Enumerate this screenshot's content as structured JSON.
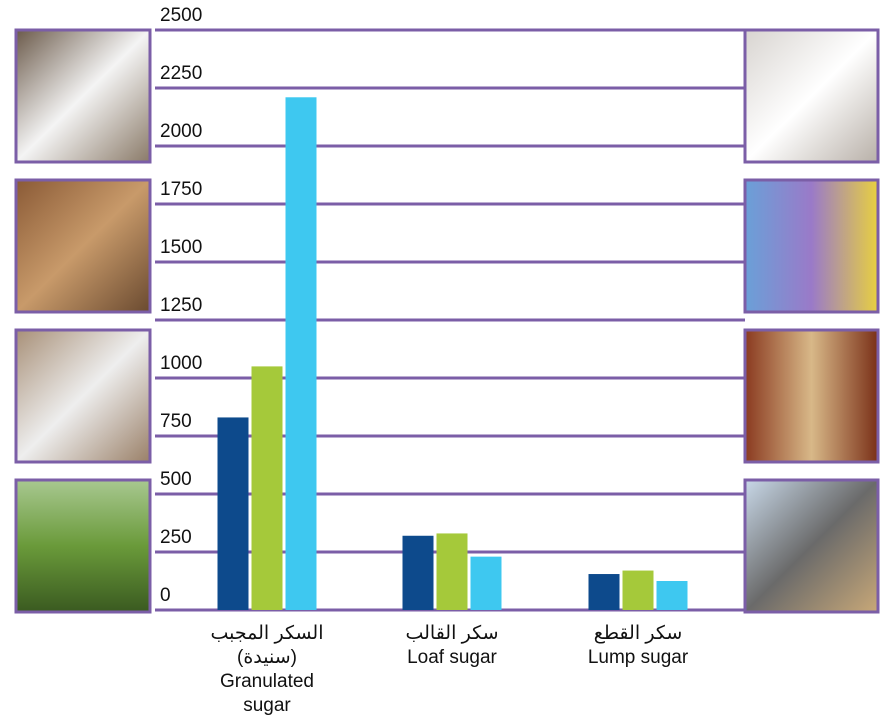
{
  "chart_data": {
    "type": "bar",
    "categories": [
      [
        "السكر المجبب",
        "(سنيدة)",
        "Granulated",
        "sugar"
      ],
      [
        "سكر القالب",
        "Loaf sugar"
      ],
      [
        "سكر القطع",
        "Lump sugar"
      ]
    ],
    "series": [
      {
        "color": "#0d4a8c",
        "values": [
          830,
          320,
          155
        ]
      },
      {
        "color": "#a5c93a",
        "values": [
          1050,
          330,
          170
        ]
      },
      {
        "color": "#3ec8f0",
        "values": [
          2210,
          230,
          125
        ]
      }
    ],
    "ylim": [
      0,
      2500
    ],
    "yticks": [
      0,
      250,
      500,
      750,
      1000,
      1250,
      1500,
      1750,
      2000,
      2250,
      2500
    ],
    "grid": true,
    "grid_color": "#7b5ea7"
  }
}
